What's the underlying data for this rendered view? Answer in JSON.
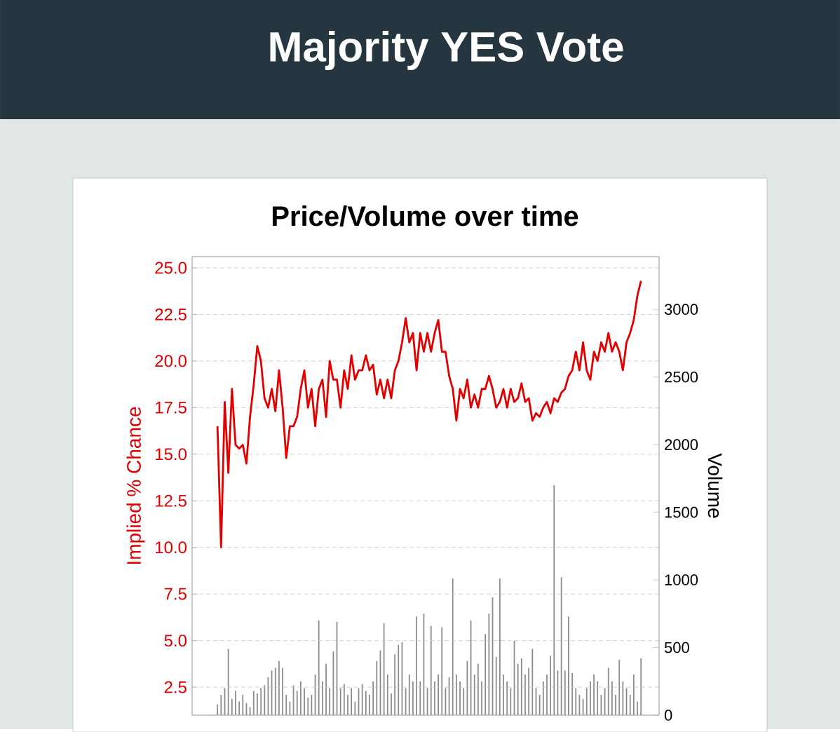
{
  "chart_data": {
    "type": "line",
    "title": "Majority YES Vote",
    "subtitle": "Price/Volume over time",
    "ylabel": "Implied % Chance",
    "y2label": "Volume",
    "categories": [
      null,
      null,
      null,
      null,
      null,
      null,
      null,
      null,
      null,
      null,
      null,
      null,
      null,
      null,
      null,
      null,
      null,
      null,
      null,
      null,
      null,
      null,
      null,
      null,
      null,
      null,
      null,
      null,
      null,
      null,
      null,
      null,
      null,
      null,
      null,
      null,
      null,
      null,
      null,
      null,
      null,
      null,
      null,
      null,
      null,
      null,
      null,
      null,
      null,
      null,
      null,
      null,
      null,
      null,
      null,
      null,
      null,
      null,
      null,
      null,
      null,
      null,
      null,
      null,
      null,
      null,
      null,
      null,
      null,
      null,
      null,
      null,
      null,
      null,
      null,
      null,
      null,
      null,
      null,
      null,
      null,
      null,
      null,
      null,
      null,
      null,
      null,
      null,
      null,
      null,
      null,
      null,
      null,
      null,
      null,
      null,
      null,
      null,
      null,
      null,
      null,
      null,
      null,
      null,
      null,
      null,
      null,
      null,
      null,
      null,
      null,
      null,
      null,
      null,
      null,
      null,
      null,
      null
    ],
    "series": [
      {
        "type": "bar",
        "axis": "y2",
        "color": "#8c8c8c",
        "values": [
          80,
          150,
          200,
          490,
          120,
          180,
          100,
          150,
          90,
          60,
          180,
          160,
          200,
          220,
          280,
          330,
          350,
          400,
          350,
          150,
          100,
          220,
          180,
          250,
          200,
          130,
          150,
          300,
          700,
          250,
          380,
          200,
          470,
          690,
          200,
          230,
          150,
          200,
          100,
          200,
          230,
          180,
          150,
          250,
          400,
          480,
          680,
          300,
          160,
          450,
          520,
          540,
          200,
          300,
          250,
          730,
          250,
          750,
          200,
          660,
          250,
          300,
          650,
          200,
          280,
          1010,
          300,
          250,
          200,
          400,
          700,
          300,
          380,
          250,
          600,
          750,
          870,
          430,
          1010,
          300,
          250,
          200,
          550,
          380,
          420,
          300,
          350,
          490,
          200,
          150,
          250,
          300,
          440,
          1700,
          330,
          1020,
          330,
          730,
          310,
          200,
          150,
          120,
          200,
          250,
          300,
          250,
          150,
          200,
          350,
          250,
          150,
          410,
          250,
          200,
          150,
          300,
          100,
          420
        ]
      },
      {
        "color": "#e00000",
        "values": [
          16.5,
          10,
          17.8,
          14,
          18.5,
          15.5,
          15.3,
          15.5,
          14.5,
          17,
          18.7,
          20.8,
          20,
          18,
          17.5,
          18.5,
          17.3,
          19.5,
          17.5,
          14.8,
          16.5,
          16.5,
          17,
          18.5,
          19.5,
          17.5,
          18.5,
          16.5,
          18.5,
          19,
          17,
          20,
          19,
          19,
          17.5,
          19.5,
          18.5,
          20.3,
          19,
          19.5,
          19.5,
          20.3,
          19.5,
          19.8,
          18.2,
          19,
          18,
          19,
          18,
          19.5,
          20,
          21,
          22.3,
          21,
          21.5,
          19.5,
          21.5,
          20.5,
          21.5,
          20.5,
          21.5,
          22.2,
          20.5,
          20.5,
          19.2,
          18.5,
          16.8,
          18.5,
          18,
          19,
          17.5,
          18.2,
          17.5,
          18.5,
          18.5,
          19.2,
          18.5,
          17.5,
          17.8,
          18.5,
          17.5,
          18.5,
          17.8,
          18,
          18.8,
          17.8,
          18,
          16.8,
          17.2,
          17,
          17.5,
          17.8,
          17.2,
          18,
          17.8,
          18.3,
          18.5,
          19.2,
          19.5,
          20.5,
          19.5,
          21,
          19.5,
          19,
          20.5,
          20,
          21,
          20.5,
          21.5,
          20.5,
          21,
          20.5,
          19.5,
          21,
          21.5,
          22.2,
          23.5,
          24.3
        ]
      }
    ],
    "ylim": [
      1,
      25.6
    ],
    "yticks": [
      2.5,
      {
        "value": 5,
        "label": "5.0"
      },
      7.5,
      {
        "value": 10,
        "label": "10.0"
      },
      12.5,
      {
        "value": 15,
        "label": "15.0"
      },
      17.5,
      {
        "value": 20,
        "label": "20.0"
      },
      22.5,
      {
        "value": 25,
        "label": "25.0"
      }
    ],
    "y2lim": [
      0,
      3390
    ],
    "y2ticks": [
      0,
      500,
      1000,
      1500,
      2000,
      2500,
      3000
    ],
    "grid": "y"
  }
}
